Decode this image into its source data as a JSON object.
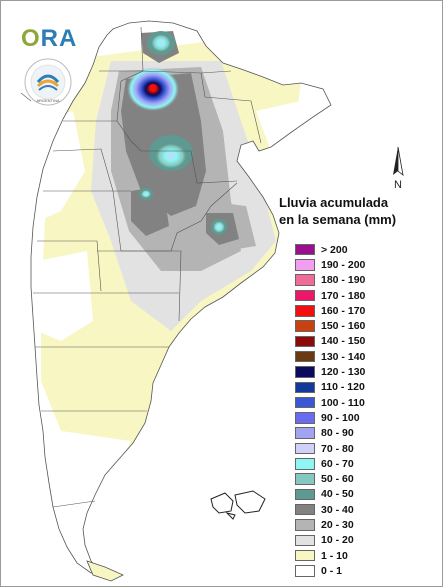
{
  "logo": {
    "text_a": "O",
    "text_b": "RA"
  },
  "seal": {
    "bottom_text": "ARGENTINA"
  },
  "compass": {
    "label": "N"
  },
  "legend": {
    "title_line1": "Lluvia acumulada",
    "title_line2": "en la semana (mm)",
    "items": [
      {
        "label": "> 200",
        "color": "#9b0f8e"
      },
      {
        "label": "190 - 200",
        "color": "#f49ef2"
      },
      {
        "label": "180 - 190",
        "color": "#f06a9a"
      },
      {
        "label": "170 - 180",
        "color": "#ee1667"
      },
      {
        "label": "160 - 170",
        "color": "#f10f0f"
      },
      {
        "label": "150 - 160",
        "color": "#c8410e"
      },
      {
        "label": "140 - 150",
        "color": "#8c0a0a"
      },
      {
        "label": "130 - 140",
        "color": "#6b3a12"
      },
      {
        "label": "120 - 130",
        "color": "#0a0a5e"
      },
      {
        "label": "110 - 120",
        "color": "#123a9a"
      },
      {
        "label": "100 - 110",
        "color": "#3a58d6"
      },
      {
        "label": "90 - 100",
        "color": "#6b6bf2"
      },
      {
        "label": "80 - 90",
        "color": "#a3a3f4"
      },
      {
        "label": "70 - 80",
        "color": "#d0d0f8"
      },
      {
        "label": "60 - 70",
        "color": "#8ff5f5"
      },
      {
        "label": "50 - 60",
        "color": "#86c8bf"
      },
      {
        "label": "40 - 50",
        "color": "#5e9a92"
      },
      {
        "label": "30 - 40",
        "color": "#828282"
      },
      {
        "label": "20 - 30",
        "color": "#b4b4b4"
      },
      {
        "label": "10 - 20",
        "color": "#e2e2e2"
      },
      {
        "label": "1 - 10",
        "color": "#f8f6c2"
      },
      {
        "label": "0 - 1",
        "color": "#ffffff"
      }
    ]
  }
}
